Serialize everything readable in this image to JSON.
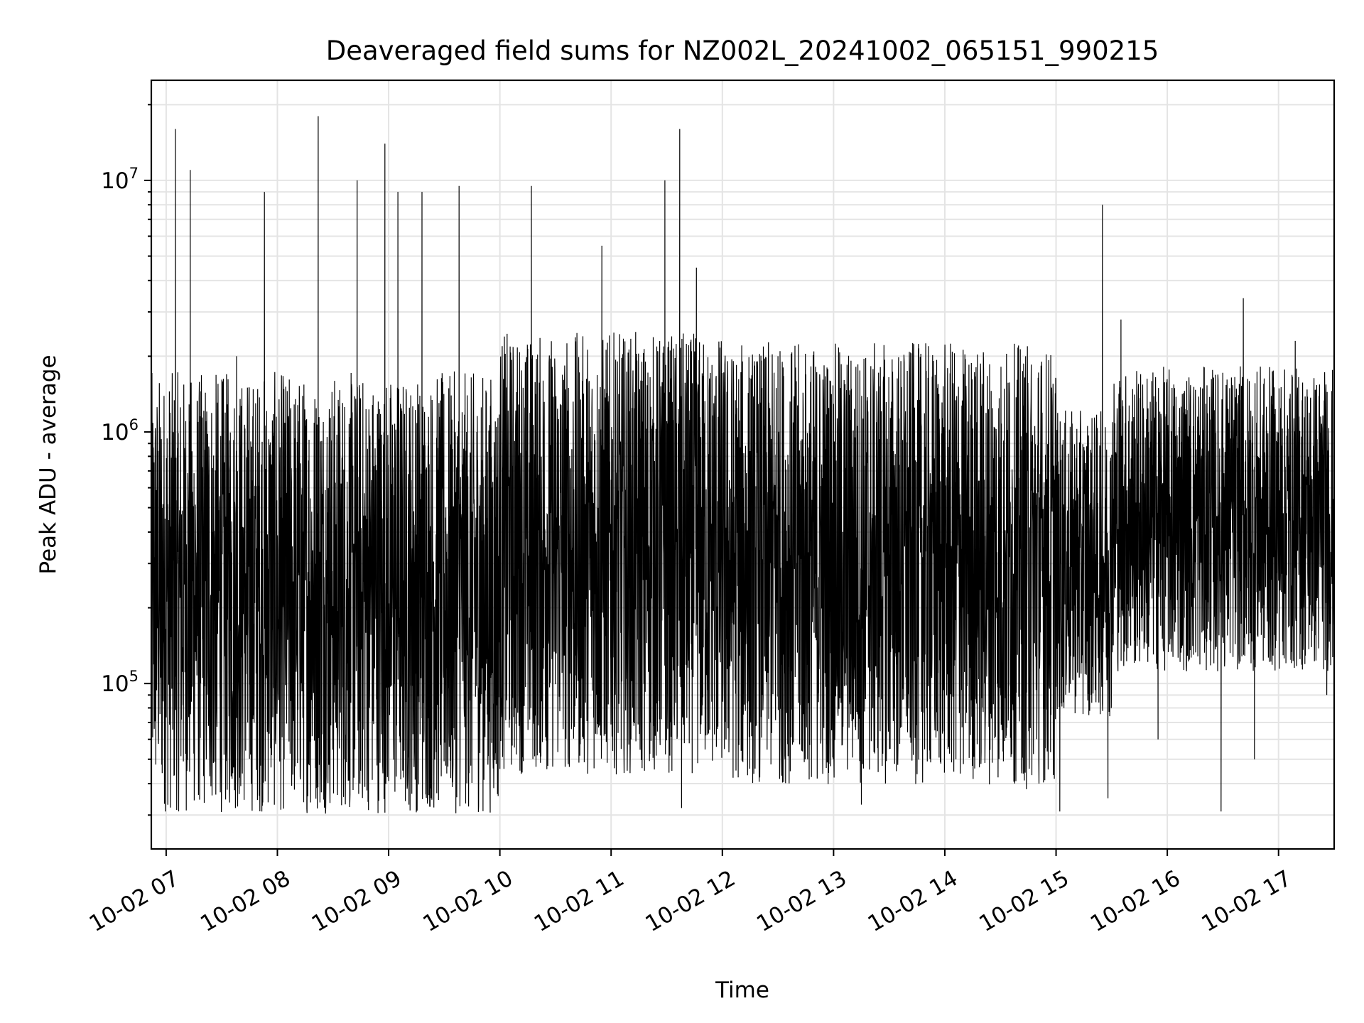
{
  "chart_data": {
    "type": "line",
    "title": "Deaveraged field sums for NZ002L_20241002_065151_990215",
    "xlabel": "Time",
    "ylabel": "Peak ADU - average",
    "yscale": "log",
    "ylim": [
      22000,
      25000000
    ],
    "xlim": [
      "2024-10-02 06:52",
      "2024-10-02 17:30"
    ],
    "grid": "major and minor",
    "legend": "none",
    "x_tick_labels": [
      "10-02 07",
      "10-02 08",
      "10-02 09",
      "10-02 10",
      "10-02 11",
      "10-02 12",
      "10-02 13",
      "10-02 14",
      "10-02 15",
      "10-02 16",
      "10-02 17"
    ],
    "x_ticks": [
      "2024-10-02 07:00",
      "2024-10-02 08:00",
      "2024-10-02 09:00",
      "2024-10-02 10:00",
      "2024-10-02 11:00",
      "2024-10-02 12:00",
      "2024-10-02 13:00",
      "2024-10-02 14:00",
      "2024-10-02 15:00",
      "2024-10-02 16:00",
      "2024-10-02 17:00"
    ],
    "y_tick_labels": [
      {
        "base": "10",
        "exp": "5",
        "value": 100000
      },
      {
        "base": "10",
        "exp": "6",
        "value": 1000000
      },
      {
        "base": "10",
        "exp": "7",
        "value": 10000000
      }
    ],
    "line_color": "#000000",
    "series": [
      {
        "x": [
          "2024-10-02 06:52",
          "2024-10-02 07:05",
          "2024-10-02 07:06",
          "2024-10-02 07:13",
          "2024-10-02 07:14",
          "2024-10-02 07:20",
          "2024-10-02 07:38",
          "2024-10-02 07:44",
          "2024-10-02 07:53",
          "2024-10-02 07:55",
          "2024-10-02 08:04",
          "2024-10-02 08:22",
          "2024-10-02 08:23",
          "2024-10-02 08:30",
          "2024-10-02 08:43",
          "2024-10-02 08:58",
          "2024-10-02 09:04",
          "2024-10-02 09:05",
          "2024-10-02 09:09",
          "2024-10-02 09:18",
          "2024-10-02 09:34",
          "2024-10-02 09:38",
          "2024-10-02 09:42",
          "2024-10-02 09:59",
          "2024-10-02 10:17",
          "2024-10-02 10:27",
          "2024-10-02 10:55",
          "2024-10-02 11:18",
          "2024-10-02 11:29",
          "2024-10-02 11:30",
          "2024-10-02 11:37",
          "2024-10-02 11:38",
          "2024-10-02 11:46",
          "2024-10-02 12:02",
          "2024-10-02 12:30",
          "2024-10-02 12:46",
          "2024-10-02 12:58",
          "2024-10-02 13:15",
          "2024-10-02 13:56",
          "2024-10-02 14:06",
          "2024-10-02 14:29",
          "2024-10-02 14:44",
          "2024-10-02 15:02",
          "2024-10-02 15:13",
          "2024-10-02 15:25",
          "2024-10-02 15:28",
          "2024-10-02 15:35",
          "2024-10-02 15:55",
          "2024-10-02 16:19",
          "2024-10-02 16:29",
          "2024-10-02 16:41",
          "2024-10-02 16:47",
          "2024-10-02 17:09",
          "2024-10-02 17:26",
          "2024-10-02 17:30"
        ],
        "values": [
          450000,
          16000000,
          300000,
          11000000,
          400000,
          150000,
          2000000,
          70000,
          9000000,
          75000,
          700000,
          18000000,
          300000,
          110000,
          10000000,
          14000000,
          300000,
          9000000,
          160000,
          9000000,
          90000,
          9500000,
          800000,
          160000,
          9500000,
          400000,
          5500000,
          45000,
          10000000,
          80000,
          16000000,
          32000,
          4500000,
          60000,
          2000000,
          50000,
          1600000,
          33000,
          900000,
          50000,
          500000,
          38000,
          31000,
          500000,
          8000000,
          35000,
          2800000,
          60000,
          500000,
          31000,
          3400000,
          50000,
          2300000,
          90000,
          950000
        ]
      }
    ]
  }
}
